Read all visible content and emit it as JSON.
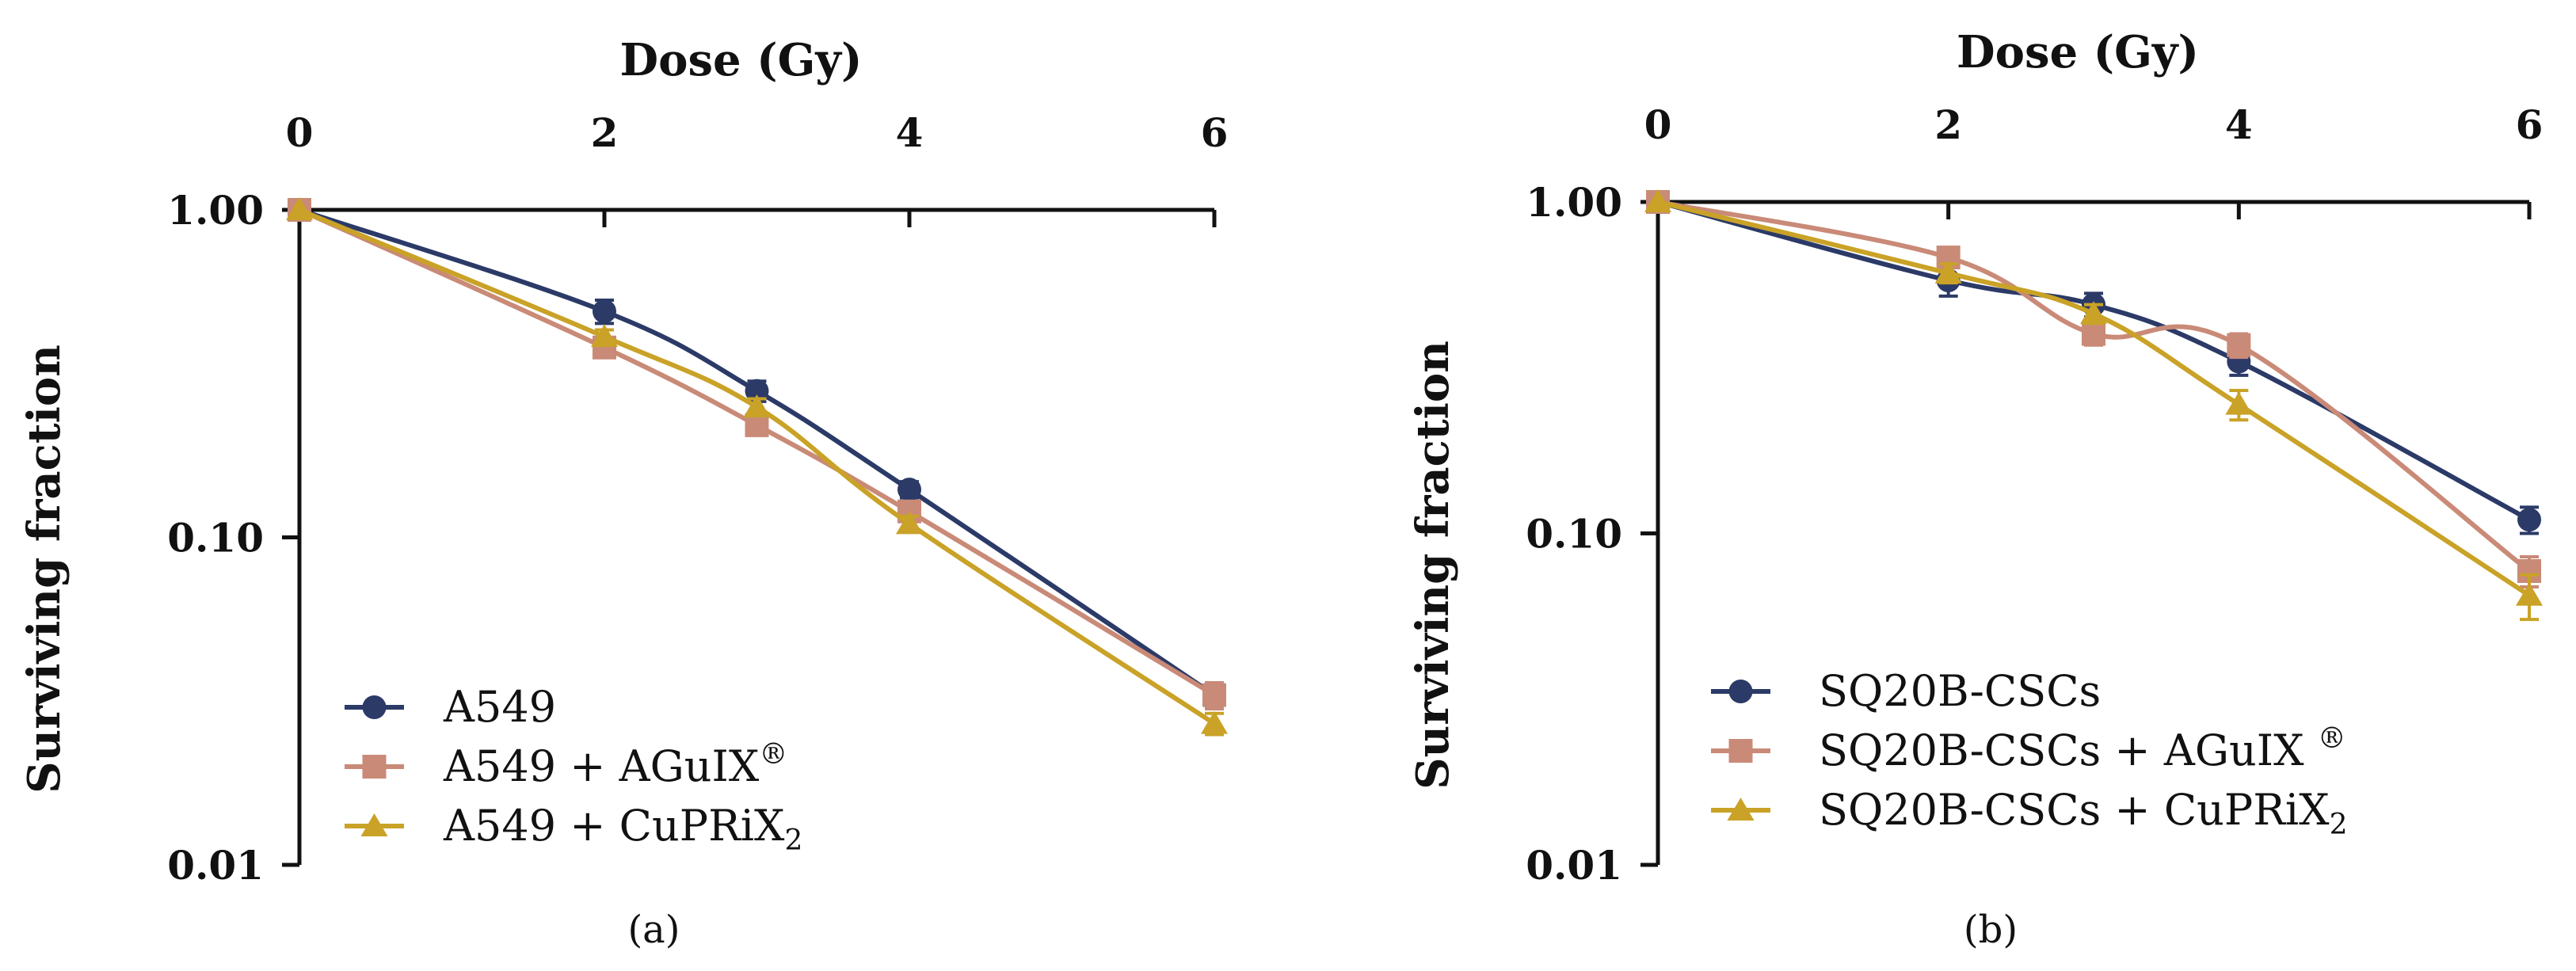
{
  "colors": {
    "series": [
      "#2b3a67",
      "#c98a77",
      "#c9a227"
    ],
    "axis": "#111111",
    "background": "#ffffff"
  },
  "chart_data": [
    {
      "type": "line",
      "panel_label": "(a)",
      "title": "",
      "xlabel": "Dose (Gy)",
      "ylabel": "Surviving fraction",
      "xaxis_position": "top",
      "yscale": "log",
      "xlim": [
        0,
        6
      ],
      "ylim": [
        0.01,
        1.0
      ],
      "xticks": [
        "0",
        "2",
        "4",
        "6"
      ],
      "yticks": [
        "1.00",
        "0.10",
        "0.01"
      ],
      "x": [
        0,
        2,
        3,
        4,
        6
      ],
      "grid": false,
      "legend_position": "bottom-left",
      "series": [
        {
          "name": "A549",
          "name_main": "A549",
          "name_sup": "",
          "name_sub": "",
          "marker": "circle",
          "values": [
            1.0,
            0.49,
            0.28,
            0.14,
            0.033
          ],
          "errors": [
            0,
            0.04,
            0.02,
            0.008,
            0.003
          ]
        },
        {
          "name": "A549 + AGuIX®",
          "name_main": "A549 + AGuIX",
          "name_sup": "®",
          "name_sub": "",
          "marker": "square",
          "values": [
            1.0,
            0.38,
            0.22,
            0.12,
            0.033
          ],
          "errors": [
            0,
            0.02,
            0.015,
            0.006,
            0.003
          ]
        },
        {
          "name": "A549 + CuPRiX2",
          "name_main": "A549 + CuPRiX",
          "name_sup": "",
          "name_sub": "2",
          "marker": "triangle",
          "values": [
            1.0,
            0.41,
            0.25,
            0.11,
            0.027
          ],
          "errors": [
            0,
            0.02,
            0.015,
            0.006,
            0.002
          ]
        }
      ]
    },
    {
      "type": "line",
      "panel_label": "(b)",
      "title": "",
      "xlabel": "Dose (Gy)",
      "ylabel": "Surviving fraction",
      "xaxis_position": "top",
      "yscale": "log",
      "xlim": [
        0,
        6
      ],
      "ylim": [
        0.01,
        1.0
      ],
      "xticks": [
        "0",
        "2",
        "4",
        "6"
      ],
      "yticks": [
        "1.00",
        "0.10",
        "0.01"
      ],
      "x": [
        0,
        2,
        3,
        4,
        6
      ],
      "grid": false,
      "legend_position": "bottom-left",
      "series": [
        {
          "name": "SQ20B-CSCs",
          "name_main": "SQ20B-CSCs",
          "name_sup": "",
          "name_sub": "",
          "marker": "circle",
          "values": [
            1.0,
            0.58,
            0.49,
            0.33,
            0.11
          ],
          "errors": [
            0,
            0.06,
            0.04,
            0.03,
            0.01
          ]
        },
        {
          "name": "SQ20B-CSCs + AGuIX ®",
          "name_main": "SQ20B-CSCs + AGuIX ",
          "name_sup": "®",
          "name_sub": "",
          "marker": "square",
          "values": [
            1.0,
            0.68,
            0.4,
            0.37,
            0.077
          ],
          "errors": [
            0,
            0.04,
            0.03,
            0.03,
            0.008
          ]
        },
        {
          "name": "SQ20B-CSCs + CuPRiX2",
          "name_main": "SQ20B-CSCs + CuPRiX",
          "name_sup": "",
          "name_sub": "2",
          "marker": "triangle",
          "values": [
            1.0,
            0.61,
            0.46,
            0.245,
            0.065
          ],
          "errors": [
            0,
            0.04,
            0.03,
            0.025,
            0.01
          ]
        }
      ]
    }
  ]
}
